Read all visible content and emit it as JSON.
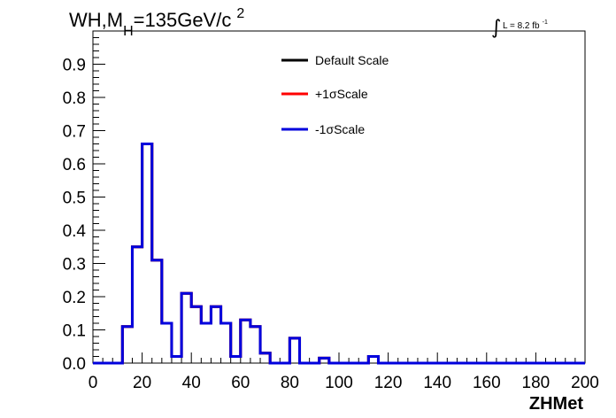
{
  "chart_data": {
    "type": "line",
    "title_main": "WH,M",
    "title_sub": "H",
    "title_rest": "=135GeV/c",
    "title_sup": "2",
    "lumi_symbol": "∫",
    "lumi_text": "L = 8.2 fb",
    "lumi_sup": "-1",
    "xlabel": "ZHMet",
    "ylabel": "",
    "xlim": [
      0,
      200
    ],
    "ylim": [
      0,
      1
    ],
    "x_ticks": [
      0,
      20,
      40,
      60,
      80,
      100,
      120,
      140,
      160,
      180,
      200
    ],
    "x_tick_labels": [
      "0",
      "20",
      "40",
      "60",
      "80",
      "100",
      "120",
      "140",
      "160",
      "180",
      "200"
    ],
    "y_ticks": [
      0,
      0.1,
      0.2,
      0.3,
      0.4,
      0.5,
      0.6,
      0.7,
      0.8,
      0.9
    ],
    "y_tick_labels": [
      "0.0",
      "0.1",
      "0.2",
      "0.3",
      "0.4",
      "0.5",
      "0.6",
      "0.7",
      "0.8",
      "0.9"
    ],
    "grid": false,
    "legend_position": "top-center",
    "bin_edges": [
      0,
      4,
      8,
      12,
      16,
      20,
      24,
      28,
      32,
      36,
      40,
      44,
      48,
      52,
      56,
      60,
      64,
      68,
      72,
      76,
      80,
      84,
      88,
      92,
      96,
      100,
      104,
      108,
      112,
      116,
      120,
      124,
      128,
      132,
      136,
      140,
      144,
      148,
      152,
      156,
      160,
      164,
      168,
      172,
      176,
      180,
      184,
      188,
      192,
      196,
      200
    ],
    "series": [
      {
        "name": "Default Scale",
        "color": "#000000",
        "values": [
          0,
          0,
          0,
          0.11,
          0.35,
          0.66,
          0.31,
          0.12,
          0.02,
          0.21,
          0.17,
          0.12,
          0.17,
          0.12,
          0.02,
          0.13,
          0.11,
          0.03,
          0,
          0,
          0.075,
          0,
          0,
          0.015,
          0,
          0,
          0,
          0,
          0.02,
          0,
          0,
          0,
          0,
          0,
          0,
          0,
          0,
          0,
          0,
          0,
          0,
          0,
          0,
          0,
          0,
          0,
          0,
          0,
          0,
          0
        ]
      },
      {
        "name": "+1σScale",
        "color": "#ff0000",
        "values": [
          0,
          0,
          0,
          0.11,
          0.35,
          0.66,
          0.31,
          0.12,
          0.02,
          0.21,
          0.17,
          0.12,
          0.17,
          0.12,
          0.02,
          0.13,
          0.11,
          0.03,
          0,
          0,
          0.075,
          0,
          0,
          0.015,
          0,
          0,
          0,
          0,
          0.02,
          0,
          0,
          0,
          0,
          0,
          0,
          0,
          0,
          0,
          0,
          0,
          0,
          0,
          0,
          0,
          0,
          0,
          0,
          0,
          0,
          0
        ]
      },
      {
        "name": "-1σScale",
        "color": "#0000dd",
        "values": [
          0,
          0,
          0,
          0.11,
          0.35,
          0.66,
          0.31,
          0.12,
          0.02,
          0.21,
          0.17,
          0.12,
          0.17,
          0.12,
          0.02,
          0.13,
          0.11,
          0.03,
          0,
          0,
          0.075,
          0,
          0,
          0.015,
          0,
          0,
          0,
          0,
          0.02,
          0,
          0,
          0,
          0,
          0,
          0,
          0,
          0,
          0,
          0,
          0,
          0,
          0,
          0,
          0,
          0,
          0,
          0,
          0,
          0,
          0
        ]
      }
    ]
  }
}
